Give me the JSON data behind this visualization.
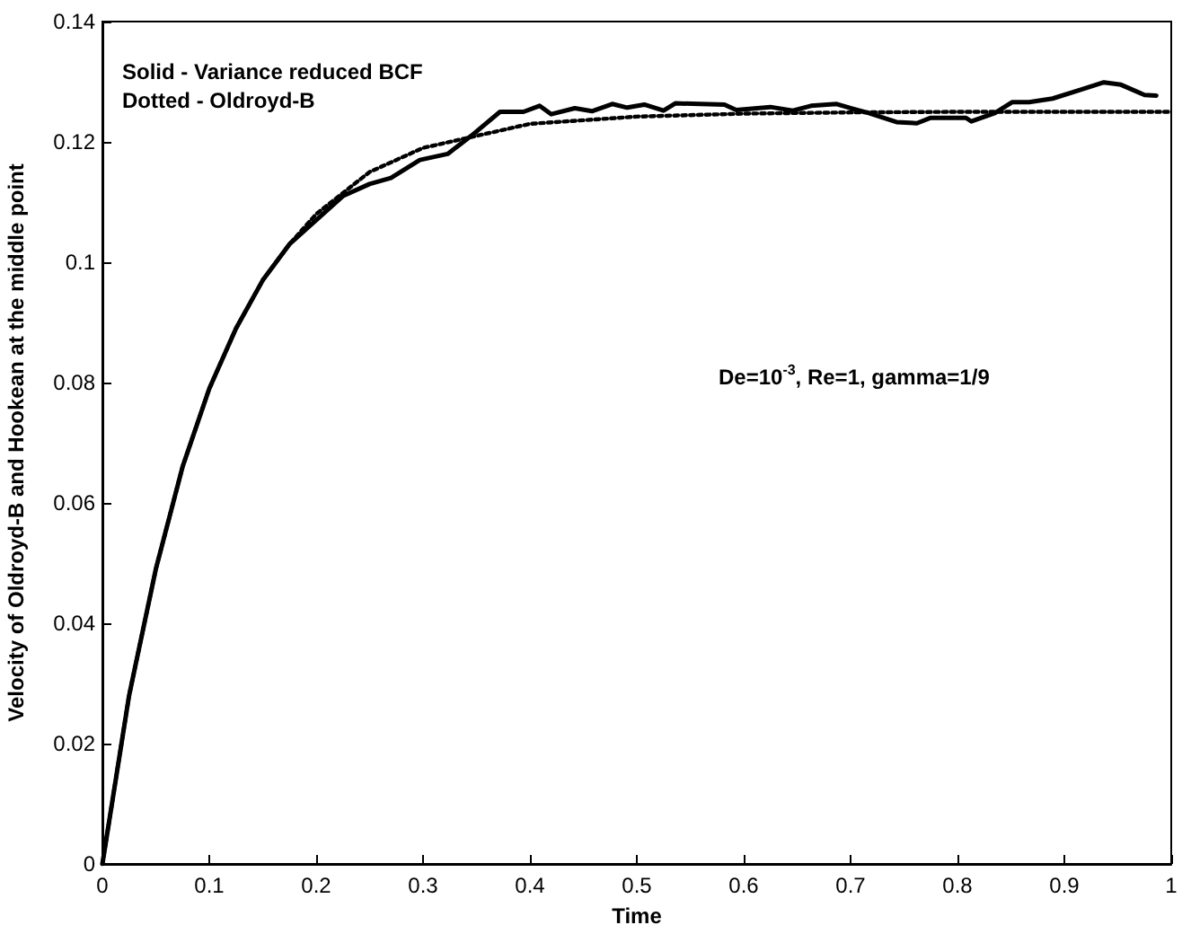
{
  "chart_data": {
    "type": "line",
    "xlabel": "Time",
    "ylabel": "Velocity of Oldroyd-B and Hookean at the middle point",
    "annotations": [
      "Solid - Variance reduced BCF",
      "Dotted - Oldroyd-B",
      "De=10$^{-3}$, Re=1, gamma=1/9"
    ],
    "series": [
      {
        "color": "#000000",
        "line_style": "solid",
        "x": [
          0,
          0.025,
          0.05,
          0.075,
          0.1,
          0.125,
          0.15,
          0.175,
          0.2,
          0.225,
          0.25,
          0.27,
          0.297,
          0.323,
          0.345,
          0.372,
          0.394,
          0.409,
          0.42,
          0.442,
          0.458,
          0.477,
          0.491,
          0.507,
          0.525,
          0.536,
          0.582,
          0.593,
          0.625,
          0.646,
          0.663,
          0.687,
          0.7,
          0.717,
          0.743,
          0.762,
          0.775,
          0.808,
          0.813,
          0.835,
          0.851,
          0.867,
          0.889,
          0.916,
          0.937,
          0.953,
          0.975,
          0.986
        ],
        "values": [
          0,
          0.028,
          0.049,
          0.066,
          0.079,
          0.089,
          0.097,
          0.103,
          0.107,
          0.111,
          0.113,
          0.114,
          0.117,
          0.118,
          0.121,
          0.125,
          0.125,
          0.126,
          0.1246,
          0.1256,
          0.1251,
          0.1263,
          0.1257,
          0.1262,
          0.1252,
          0.1264,
          0.1262,
          0.1253,
          0.1258,
          0.1252,
          0.126,
          0.1263,
          0.1256,
          0.1248,
          0.1233,
          0.1231,
          0.124,
          0.124,
          0.1234,
          0.1248,
          0.1266,
          0.1266,
          0.1272,
          0.1287,
          0.1299,
          0.1295,
          0.1278,
          0.1277
        ]
      },
      {
        "color": "#000000",
        "line_style": "dotted",
        "x": [
          0,
          0.025,
          0.05,
          0.075,
          0.1,
          0.125,
          0.15,
          0.175,
          0.2,
          0.25,
          0.3,
          0.35,
          0.4,
          0.45,
          0.5,
          0.6,
          0.7,
          0.8,
          0.9,
          1
        ],
        "values": [
          0,
          0.028,
          0.049,
          0.066,
          0.079,
          0.089,
          0.097,
          0.103,
          0.108,
          0.115,
          0.119,
          0.121,
          0.123,
          0.1236,
          0.1242,
          0.1247,
          0.1249,
          0.125,
          0.125,
          0.125
        ]
      }
    ],
    "xlim": [
      0,
      1
    ],
    "xticks": [
      0,
      0.1,
      0.2,
      0.3,
      0.4,
      0.5,
      0.6,
      0.7,
      0.8,
      0.9,
      1
    ],
    "ylim": [
      0,
      0.14
    ],
    "yticks": [
      0,
      0.02,
      0.04,
      0.06,
      0.08,
      0.1,
      0.12,
      0.14
    ],
    "grid": false,
    "marker": "none"
  }
}
